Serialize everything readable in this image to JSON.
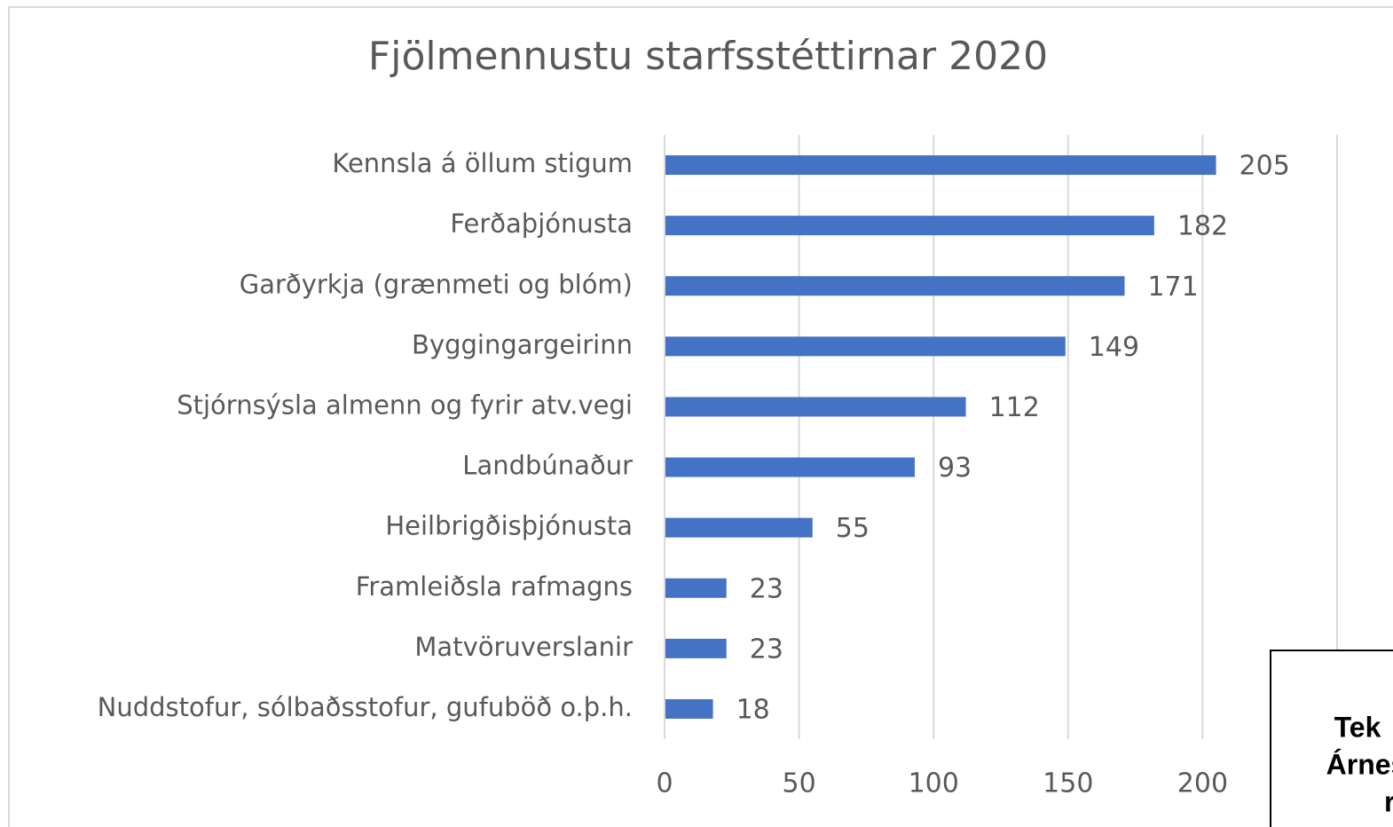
{
  "chart_data": {
    "type": "bar",
    "orientation": "horizontal",
    "title": "Fjölmennustu starfsstéttirnar 2020",
    "categories": [
      "Kennsla á öllum stigum",
      "Ferðaþjónusta",
      "Garðyrkja (grænmeti og blóm)",
      "Byggingargeirinn",
      "Stjórnsýsla almenn og fyrir atv.vegi",
      "Landbúnaður",
      "Heilbrigðisþjónusta",
      "Framleiðsla rafmagns",
      "Matvöruverslanir",
      "Nuddstofur, sólbaðsstofur, gufuböð o.þ.h."
    ],
    "values": [
      205,
      182,
      171,
      149,
      112,
      93,
      55,
      23,
      23,
      18
    ],
    "color": "#4472c4",
    "xlim": [
      0,
      250
    ],
    "xticks": [
      0,
      50,
      100,
      150,
      200
    ],
    "grid": true,
    "annotations": [
      "Tek",
      "Árnes",
      "r"
    ]
  }
}
